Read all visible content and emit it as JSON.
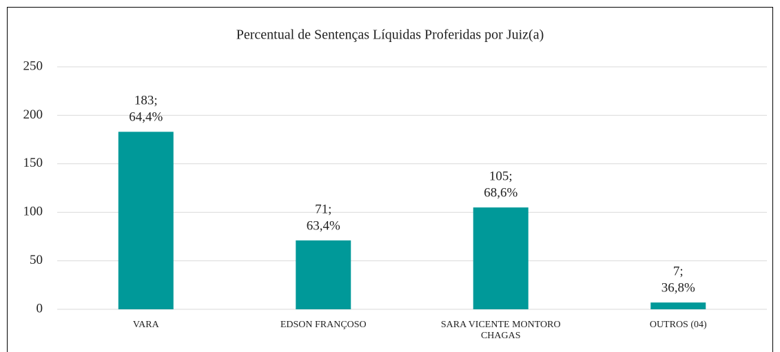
{
  "chart_data": {
    "type": "bar",
    "title": "Percentual de Sentenças Líquidas Proferidas por Juiz(a)",
    "categories": [
      "VARA",
      "EDSON FRANÇOSO",
      "SARA VICENTE MONTORO CHAGAS",
      "OUTROS (04)"
    ],
    "values": [
      183,
      71,
      105,
      7
    ],
    "value_labels": [
      "183;",
      "71;",
      "105;",
      "7;"
    ],
    "share_labels": [
      "64,4%",
      "63,4%",
      "68,6%",
      "36,8%"
    ],
    "color": "#009999",
    "ylim": [
      0,
      250
    ],
    "yticks": [
      0,
      50,
      100,
      150,
      200,
      250
    ],
    "grid": true
  }
}
